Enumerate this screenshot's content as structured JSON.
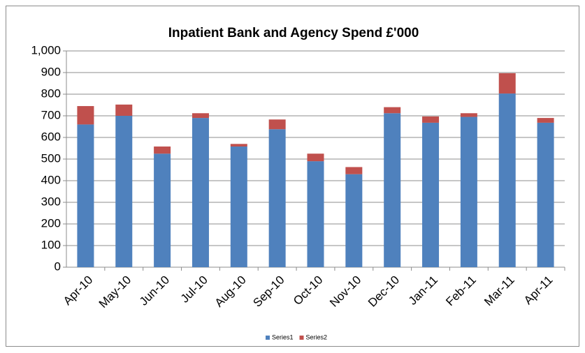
{
  "chart_data": {
    "type": "stacked_bar",
    "title": "Inpatient Bank and Agency Spend £'000",
    "categories": [
      "Apr-10",
      "May-10",
      "Jun-10",
      "Jul-10",
      "Aug-10",
      "Sep-10",
      "Oct-10",
      "Nov-10",
      "Dec-10",
      "Jan-11",
      "Feb-11",
      "Mar-11",
      "Apr-11"
    ],
    "series": [
      {
        "name": "Series1",
        "color": "#4f81bd",
        "values": [
          660,
          700,
          525,
          690,
          558,
          638,
          490,
          430,
          712,
          668,
          695,
          803,
          668
        ]
      },
      {
        "name": "Series2",
        "color": "#c0504d",
        "values": [
          85,
          52,
          33,
          22,
          12,
          45,
          35,
          33,
          28,
          29,
          17,
          94,
          22
        ]
      }
    ],
    "ylim": [
      0,
      1000
    ],
    "yticks": [
      0,
      100,
      200,
      300,
      400,
      500,
      600,
      700,
      800,
      900,
      {
        "value": 1000,
        "label": "1,000"
      }
    ],
    "grid": true,
    "legend": "bottom"
  }
}
